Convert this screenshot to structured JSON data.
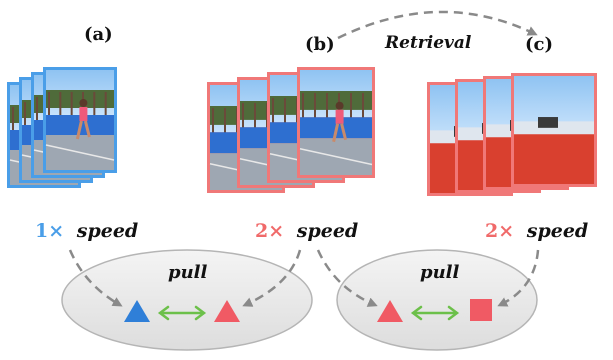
{
  "panels": [
    {
      "label": "(a)",
      "speed_num": "1×",
      "speed_word": "speed",
      "speed_color": "#4a9ee8",
      "border_color": "#4a9ee8",
      "frames": 4,
      "scene": "track"
    },
    {
      "label": "(b)",
      "speed_num": "2×",
      "speed_word": "speed",
      "speed_color": "#f06a6a",
      "border_color": "#f07878",
      "frames": 4,
      "scene": "track"
    },
    {
      "label": "(c)",
      "speed_num": "2×",
      "speed_word": "speed",
      "speed_color": "#f06a6a",
      "border_color": "#f07878",
      "frames": 4,
      "scene": "field"
    }
  ],
  "retrieval_label": "Retrieval",
  "groups": [
    {
      "label": "pull",
      "left_shape": "triangle",
      "left_color": "#2f7fd8",
      "right_shape": "triangle",
      "right_color": "#f05a64"
    },
    {
      "label": "pull",
      "left_shape": "triangle",
      "left_color": "#f05a64",
      "right_shape": "square",
      "right_color": "#f05a64"
    }
  ],
  "colors": {
    "arrow_gray": "#8a8a8a",
    "pull_green": "#6cc04a",
    "ellipse_fill": "#ececec",
    "ellipse_stroke": "#b5b5b5",
    "text": "#111111"
  }
}
